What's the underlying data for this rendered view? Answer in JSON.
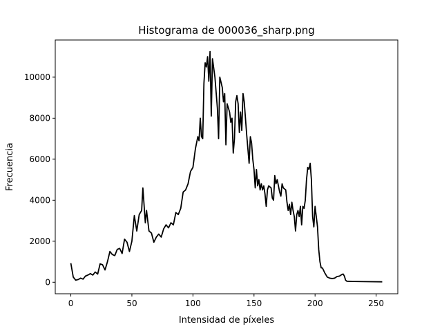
{
  "chart_data": {
    "type": "line",
    "title": "Histograma de 000036_sharp.png",
    "x_label": "Intensidad de píxeles",
    "y_label": "Frecuencia",
    "xlim": [
      -12.75,
      267.75
    ],
    "ylim": [
      -562,
      11812
    ],
    "xticks": [
      0,
      50,
      100,
      150,
      200,
      250
    ],
    "yticks": [
      0,
      2000,
      4000,
      6000,
      8000,
      10000
    ],
    "series": [
      {
        "color": "#000000",
        "x": [
          0,
          2,
          4,
          6,
          8,
          10,
          12,
          14,
          16,
          18,
          20,
          22,
          24,
          26,
          28,
          30,
          32,
          34,
          36,
          38,
          40,
          42,
          44,
          46,
          48,
          50,
          52,
          54,
          56,
          58,
          59,
          61,
          62,
          64,
          66,
          68,
          70,
          72,
          74,
          76,
          78,
          80,
          82,
          84,
          86,
          88,
          90,
          92,
          94,
          96,
          98,
          100,
          102,
          104,
          105,
          106,
          107,
          108,
          109,
          110,
          111,
          112,
          113,
          114,
          115,
          116,
          118,
          120,
          121,
          122,
          124,
          125,
          126,
          127,
          128,
          130,
          131,
          132,
          133,
          134,
          135,
          136,
          137,
          138,
          139,
          140,
          141,
          142,
          144,
          145,
          146,
          147,
          148,
          149,
          150,
          151,
          152,
          153,
          154,
          155,
          156,
          157,
          158,
          159,
          160,
          161,
          162,
          164,
          165,
          166,
          167,
          168,
          169,
          170,
          171,
          172,
          173,
          174,
          176,
          177,
          178,
          179,
          180,
          181,
          182,
          183,
          184,
          185,
          186,
          187,
          188,
          189,
          190,
          191,
          192,
          193,
          194,
          195,
          196,
          197,
          198,
          199,
          200,
          201,
          202,
          203,
          204,
          205,
          206,
          208,
          210,
          212,
          214,
          216,
          218,
          220,
          222,
          223,
          224,
          225,
          226,
          230,
          240,
          255
        ],
        "values": [
          930,
          250,
          100,
          130,
          200,
          150,
          300,
          350,
          420,
          350,
          500,
          400,
          900,
          850,
          600,
          1000,
          1500,
          1350,
          1300,
          1600,
          1650,
          1400,
          2100,
          1950,
          1500,
          2000,
          3250,
          2500,
          3300,
          3500,
          4600,
          2900,
          3500,
          2500,
          2400,
          1950,
          2200,
          2350,
          2200,
          2600,
          2800,
          2650,
          2900,
          2800,
          3400,
          3300,
          3600,
          4400,
          4500,
          4800,
          5400,
          5600,
          6500,
          7100,
          6900,
          8000,
          7100,
          7000,
          9700,
          10700,
          10500,
          11000,
          9800,
          11250,
          8100,
          10900,
          10000,
          8500,
          7000,
          10000,
          9500,
          8800,
          9200,
          6700,
          8700,
          8300,
          7800,
          8000,
          6300,
          7000,
          8800,
          9100,
          8700,
          7300,
          8300,
          7400,
          9200,
          8800,
          7200,
          6500,
          5800,
          7100,
          6800,
          6000,
          5500,
          4600,
          5500,
          4700,
          5000,
          4500,
          4800,
          4500,
          4700,
          4300,
          3700,
          4500,
          4700,
          4600,
          4100,
          4000,
          5200,
          4800,
          5000,
          4700,
          4400,
          4200,
          4800,
          4600,
          4500,
          3900,
          3500,
          3800,
          3300,
          3900,
          3500,
          3200,
          2500,
          3300,
          3500,
          3200,
          3700,
          2800,
          3700,
          3600,
          4000,
          5000,
          5600,
          5500,
          5800,
          5000,
          3200,
          2700,
          3700,
          3200,
          2700,
          1600,
          1000,
          700,
          700,
          450,
          250,
          200,
          180,
          200,
          280,
          300,
          380,
          400,
          300,
          100,
          50,
          40,
          30,
          20
        ]
      }
    ]
  }
}
